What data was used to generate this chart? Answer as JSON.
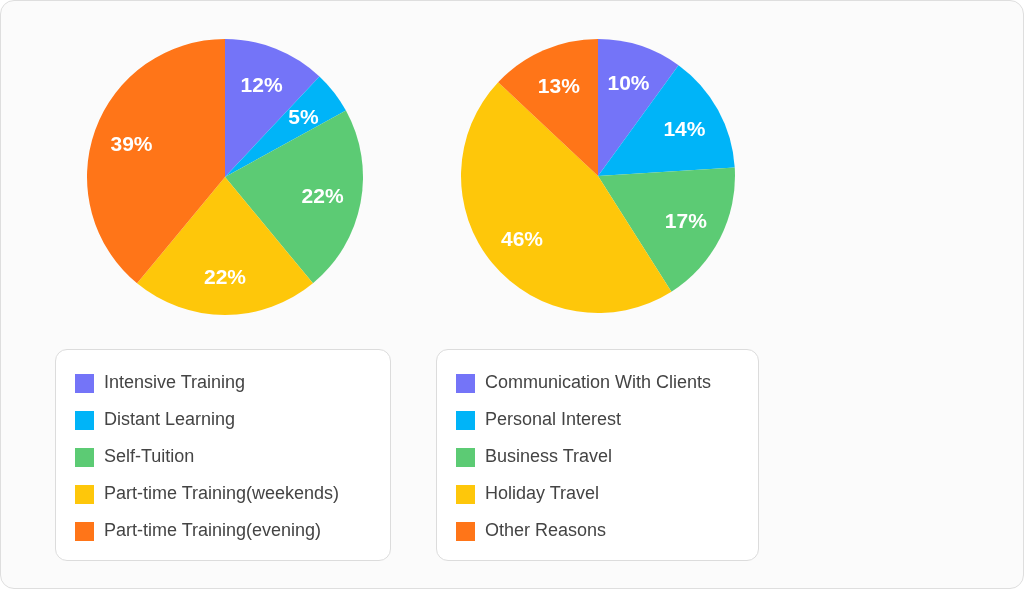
{
  "chart_data": [
    {
      "type": "pie",
      "categories": [
        "Intensive Training",
        "Distant Learning",
        "Self-Tuition",
        "Part-time Training(weekends)",
        "Part-time Training(evening)"
      ],
      "values": [
        12,
        5,
        22,
        22,
        39
      ],
      "value_labels": [
        "12%",
        "5%",
        "22%",
        "22%",
        "39%"
      ],
      "colors": [
        "#7474f8",
        "#00b4f8",
        "#5ccb74",
        "#fec70a",
        "#ff7518"
      ],
      "legend": "bottom"
    },
    {
      "type": "pie",
      "categories": [
        "Communication With Clients",
        "Personal Interest",
        "Business Travel",
        "Holiday Travel",
        "Other Reasons"
      ],
      "values": [
        10,
        14,
        17,
        46,
        13
      ],
      "value_labels": [
        "10%",
        "14%",
        "17%",
        "46%",
        "13%"
      ],
      "colors": [
        "#7474f8",
        "#00b4f8",
        "#5ccb74",
        "#fec70a",
        "#ff7518"
      ],
      "legend": "bottom"
    }
  ]
}
